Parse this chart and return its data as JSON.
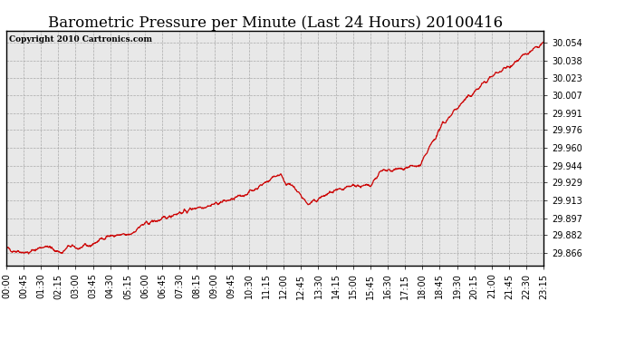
{
  "title": "Barometric Pressure per Minute (Last 24 Hours) 20100416",
  "copyright": "Copyright 2010 Cartronics.com",
  "line_color": "#cc0000",
  "bg_color": "#ffffff",
  "plot_bg_color": "#e8e8e8",
  "grid_color": "#aaaaaa",
  "yticks": [
    29.866,
    29.882,
    29.897,
    29.913,
    29.929,
    29.944,
    29.96,
    29.976,
    29.991,
    30.007,
    30.023,
    30.038,
    30.054
  ],
  "ylim": [
    29.855,
    30.065
  ],
  "xtick_labels": [
    "00:00",
    "00:45",
    "01:30",
    "02:15",
    "03:00",
    "03:45",
    "04:30",
    "05:15",
    "06:00",
    "06:45",
    "07:30",
    "08:15",
    "09:00",
    "09:45",
    "10:30",
    "11:15",
    "12:00",
    "12:45",
    "13:30",
    "14:15",
    "15:00",
    "15:45",
    "16:30",
    "17:15",
    "18:00",
    "18:45",
    "19:30",
    "20:15",
    "21:00",
    "21:45",
    "22:30",
    "23:15"
  ],
  "title_fontsize": 12,
  "tick_fontsize": 7,
  "copyright_fontsize": 6.5
}
